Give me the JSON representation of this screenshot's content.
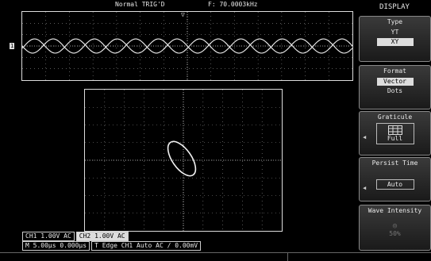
{
  "top": {
    "trigger_mode": "Normal TRIG'D",
    "freq": "F: 70.0003kHz"
  },
  "channel_marker": "1",
  "trigger_marker": "▽",
  "status": {
    "ch1": "CH1 1.00V AC",
    "ch2": "CH2 1.00V AC",
    "timebase": "M 5.00μs 0.000μs",
    "trigger": "T Edge CH1 Auto AC / 0.00mV"
  },
  "menu": {
    "title": "DISPLAY",
    "type": {
      "label": "Type",
      "options": [
        "YT",
        "XY"
      ],
      "selected": "XY"
    },
    "format": {
      "label": "Format",
      "options": [
        "Vector",
        "Dots"
      ],
      "selected": "Vector"
    },
    "graticule": {
      "label": "Graticule",
      "value": "Full",
      "icon": "grid-icon"
    },
    "persist": {
      "label": "Persist Time",
      "value": "Auto"
    },
    "intensity": {
      "label": "Wave Intensity",
      "value": "50%"
    }
  },
  "colors": {
    "trace": "#f0f0f0",
    "grid": "#cccccc",
    "background": "#000000"
  }
}
